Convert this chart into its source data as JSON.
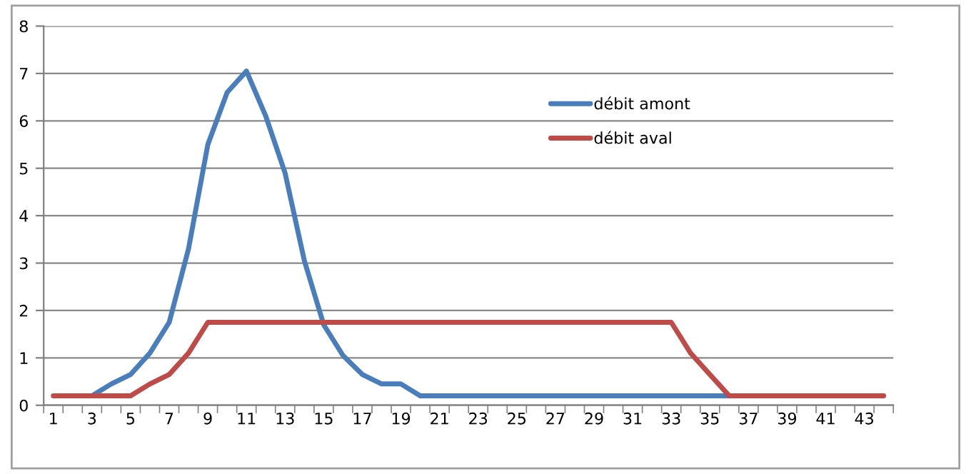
{
  "chart_data": {
    "type": "line",
    "categories": [
      "1",
      null,
      "3",
      null,
      "5",
      null,
      "7",
      null,
      "9",
      null,
      "11",
      null,
      "13",
      null,
      "15",
      null,
      "17",
      null,
      "19",
      null,
      "21",
      null,
      "23",
      null,
      "25",
      null,
      "27",
      null,
      "29",
      null,
      "31",
      null,
      "33",
      null,
      "35",
      null,
      "37",
      null,
      "39",
      null,
      "41",
      null,
      "43",
      null
    ],
    "series": [
      {
        "name": "débit amont",
        "color": "#4a7ebb",
        "values": [
          null,
          null,
          0.2,
          0.45,
          0.65,
          1.1,
          1.75,
          3.3,
          5.5,
          6.6,
          7.05,
          6.1,
          4.9,
          3.05,
          1.7,
          1.05,
          0.65,
          0.45,
          0.45,
          0.2,
          0.2,
          0.2,
          0.2,
          0.2,
          0.2,
          0.2,
          0.2,
          0.2,
          0.2,
          0.2,
          0.2,
          0.2,
          0.2,
          0.2,
          0.2,
          0.2,
          null,
          null,
          null,
          null,
          null,
          null,
          null,
          null
        ]
      },
      {
        "name": "débit aval",
        "color": "#be4b48",
        "values": [
          0.2,
          0.2,
          0.2,
          0.2,
          0.2,
          0.45,
          0.65,
          1.1,
          1.75,
          1.75,
          1.75,
          1.75,
          1.75,
          1.75,
          1.75,
          1.75,
          1.75,
          1.75,
          1.75,
          1.75,
          1.75,
          1.75,
          1.75,
          1.75,
          1.75,
          1.75,
          1.75,
          1.75,
          1.75,
          1.75,
          1.75,
          1.75,
          1.75,
          1.1,
          0.65,
          0.2,
          0.2,
          0.2,
          0.2,
          0.2,
          0.2,
          0.2,
          0.2,
          0.2
        ]
      }
    ],
    "ylim": [
      0,
      8
    ],
    "yticks": [
      0,
      1,
      2,
      3,
      4,
      5,
      6,
      7,
      8
    ],
    "grid": "y",
    "legend": "top right",
    "marker": "none",
    "line_style": "solid"
  }
}
